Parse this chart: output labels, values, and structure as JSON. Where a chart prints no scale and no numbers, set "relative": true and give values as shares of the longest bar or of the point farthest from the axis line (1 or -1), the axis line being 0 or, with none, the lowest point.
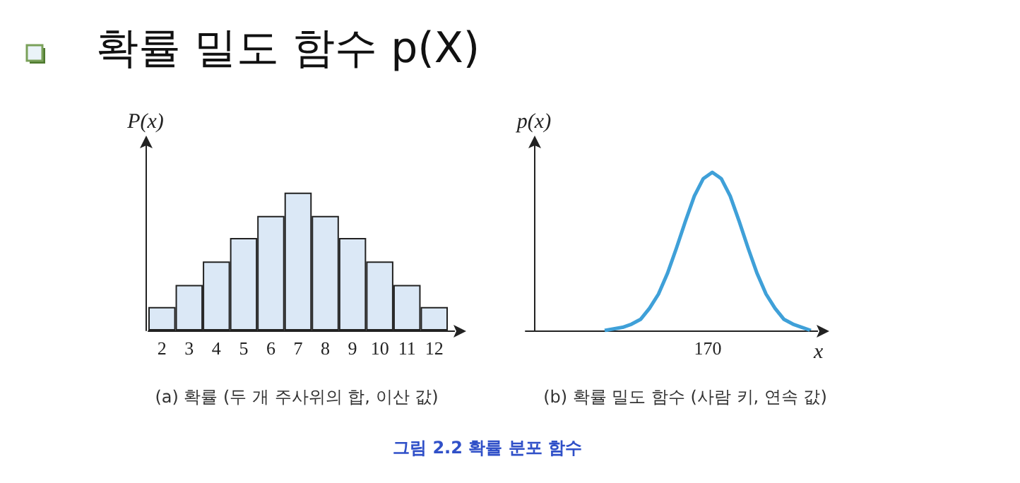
{
  "chart_data": [
    {
      "type": "bar",
      "title": "확률 밀도 함수 p(X)",
      "ylabel": "P(x)",
      "relative": true,
      "categories": [
        "2",
        "3",
        "4",
        "5",
        "6",
        "7",
        "8",
        "9",
        "10",
        "11",
        "12"
      ],
      "series": [
        {
          "color": "#dbe8f6",
          "values": [
            0.17,
            0.33,
            0.5,
            0.67,
            0.83,
            1,
            0.83,
            0.67,
            0.5,
            0.33,
            0.17
          ]
        }
      ],
      "annotations": [
        "(a) 확률 (두 개 주사위의 합, 이산 값)",
        "그림 2.2  확률 분포 함수"
      ]
    },
    {
      "type": "line",
      "ylabel": "p(x)",
      "xlabel": "x",
      "relative": true,
      "marker": "none",
      "categories": [
        null,
        null,
        null,
        null,
        null,
        null,
        null,
        null,
        null,
        null,
        null,
        null,
        null,
        null,
        null,
        null,
        null,
        null,
        null,
        null,
        null,
        null,
        null,
        null
      ],
      "series": [
        {
          "color": "#3fa0d8",
          "values": [
            0,
            0.01,
            0.02,
            0.04,
            0.07,
            0.14,
            0.23,
            0.36,
            0.52,
            0.69,
            0.85,
            0.96,
            1,
            0.96,
            0.85,
            0.69,
            0.52,
            0.36,
            0.23,
            0.14,
            0.07,
            0.04,
            0.02,
            0
          ]
        }
      ],
      "annotations": [
        "(b) 확률 밀도 함수 (사람 키, 연속 값)",
        "170"
      ]
    }
  ]
}
